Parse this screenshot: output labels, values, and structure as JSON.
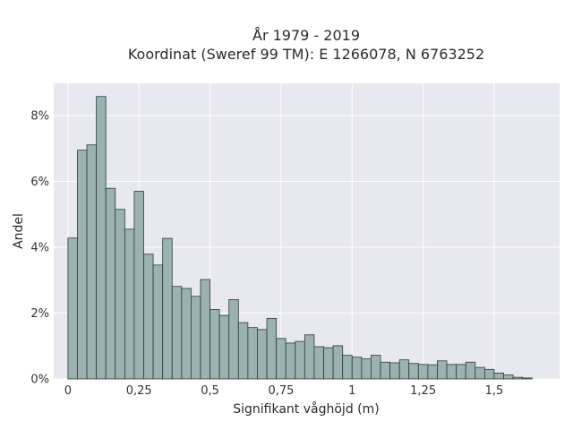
{
  "chart_data": {
    "type": "bar",
    "title": "År 1979 - 2019",
    "subtitle": "Koordinat (Sweref 99 TM): E 1266078, N 6763252",
    "xlabel": "Signifikant våghöjd (m)",
    "ylabel": "Andel",
    "xlim": [
      -0.05,
      1.73
    ],
    "ylim": [
      0,
      0.0898
    ],
    "x_ticks": [
      0,
      0.25,
      0.5,
      0.75,
      1,
      1.25,
      1.5
    ],
    "x_tick_labels": [
      "0",
      "0,25",
      "0,5",
      "0,75",
      "1",
      "1,25",
      "1,5"
    ],
    "y_ticks": [
      0,
      0.02,
      0.04,
      0.06,
      0.08
    ],
    "y_tick_labels": [
      "0%",
      "2%",
      "4%",
      "6%",
      "8%"
    ],
    "bin_width": 0.03333,
    "bin_start": 0,
    "values": [
      0.0428,
      0.0695,
      0.0711,
      0.0858,
      0.0579,
      0.0515,
      0.0455,
      0.057,
      0.0379,
      0.0346,
      0.0427,
      0.0281,
      0.0275,
      0.0251,
      0.0302,
      0.0211,
      0.0193,
      0.0241,
      0.0171,
      0.0156,
      0.015,
      0.0184,
      0.0123,
      0.0109,
      0.0114,
      0.0134,
      0.0098,
      0.0095,
      0.0101,
      0.0072,
      0.0066,
      0.0061,
      0.0072,
      0.0051,
      0.0049,
      0.0058,
      0.0047,
      0.0044,
      0.0043,
      0.0055,
      0.0044,
      0.0044,
      0.0051,
      0.0035,
      0.0029,
      0.0018,
      0.0012,
      0.0005,
      0.0003
    ],
    "grid": true,
    "colors": {
      "bar_fill": "#9bb2b0",
      "bar_stroke": "#2b3b3a",
      "plot_bg": "#e8e8f0",
      "grid": "#ffffff"
    }
  }
}
